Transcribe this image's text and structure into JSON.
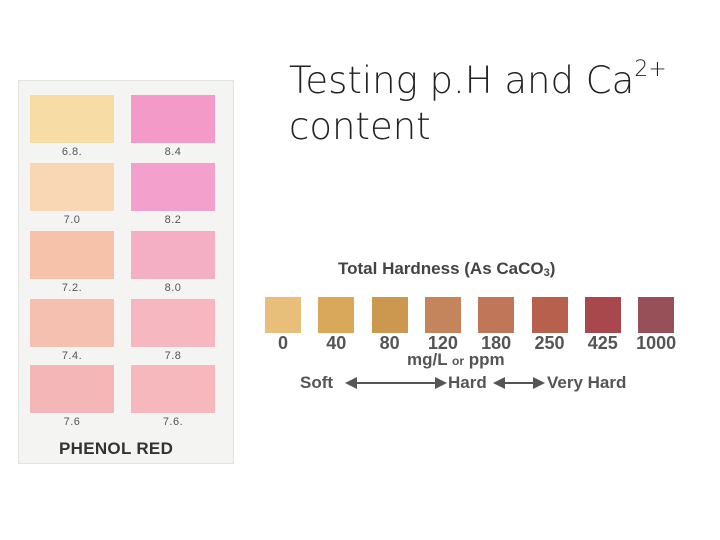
{
  "slide": {
    "title_main": "Testing p.H and Ca",
    "title_sup": "2+",
    "title_line2": "content"
  },
  "phenol_red": {
    "label": "PHENOL RED",
    "left_column": [
      {
        "label": "6.8.",
        "color": "#f7dca6"
      },
      {
        "label": "7.0",
        "color": "#f9d6b4"
      },
      {
        "label": "7.2.",
        "color": "#f7c2aa"
      },
      {
        "label": "7.4.",
        "color": "#f6c0b0"
      },
      {
        "label": "7.6",
        "color": "#f5b6b8"
      }
    ],
    "right_column": [
      {
        "label": "8.4",
        "color": "#f39ac8"
      },
      {
        "label": "8.2",
        "color": "#f3a1cc"
      },
      {
        "label": "8.0",
        "color": "#f5afc5"
      },
      {
        "label": "7.8",
        "color": "#f6b7c0"
      },
      {
        "label": "7.6.",
        "color": "#f6b8bc"
      }
    ]
  },
  "hardness": {
    "title_main": "Total Hardness  (As CaCO",
    "title_sub": "3",
    "title_end": ")",
    "swatches": [
      {
        "value": "0",
        "color": "#e8bf7a"
      },
      {
        "value": "40",
        "color": "#daa85a"
      },
      {
        "value": "80",
        "color": "#cc9850"
      },
      {
        "value": "120",
        "color": "#c4845c"
      },
      {
        "value": "180",
        "color": "#bf7659"
      },
      {
        "value": "250",
        "color": "#b8604e"
      },
      {
        "value": "425",
        "color": "#a8484c"
      },
      {
        "value": "1000",
        "color": "#985058"
      }
    ],
    "unit_left": "mg/L",
    "unit_or": "or",
    "unit_right": "ppm",
    "soft": "Soft",
    "hard": "Hard",
    "very_hard": "Very Hard"
  }
}
